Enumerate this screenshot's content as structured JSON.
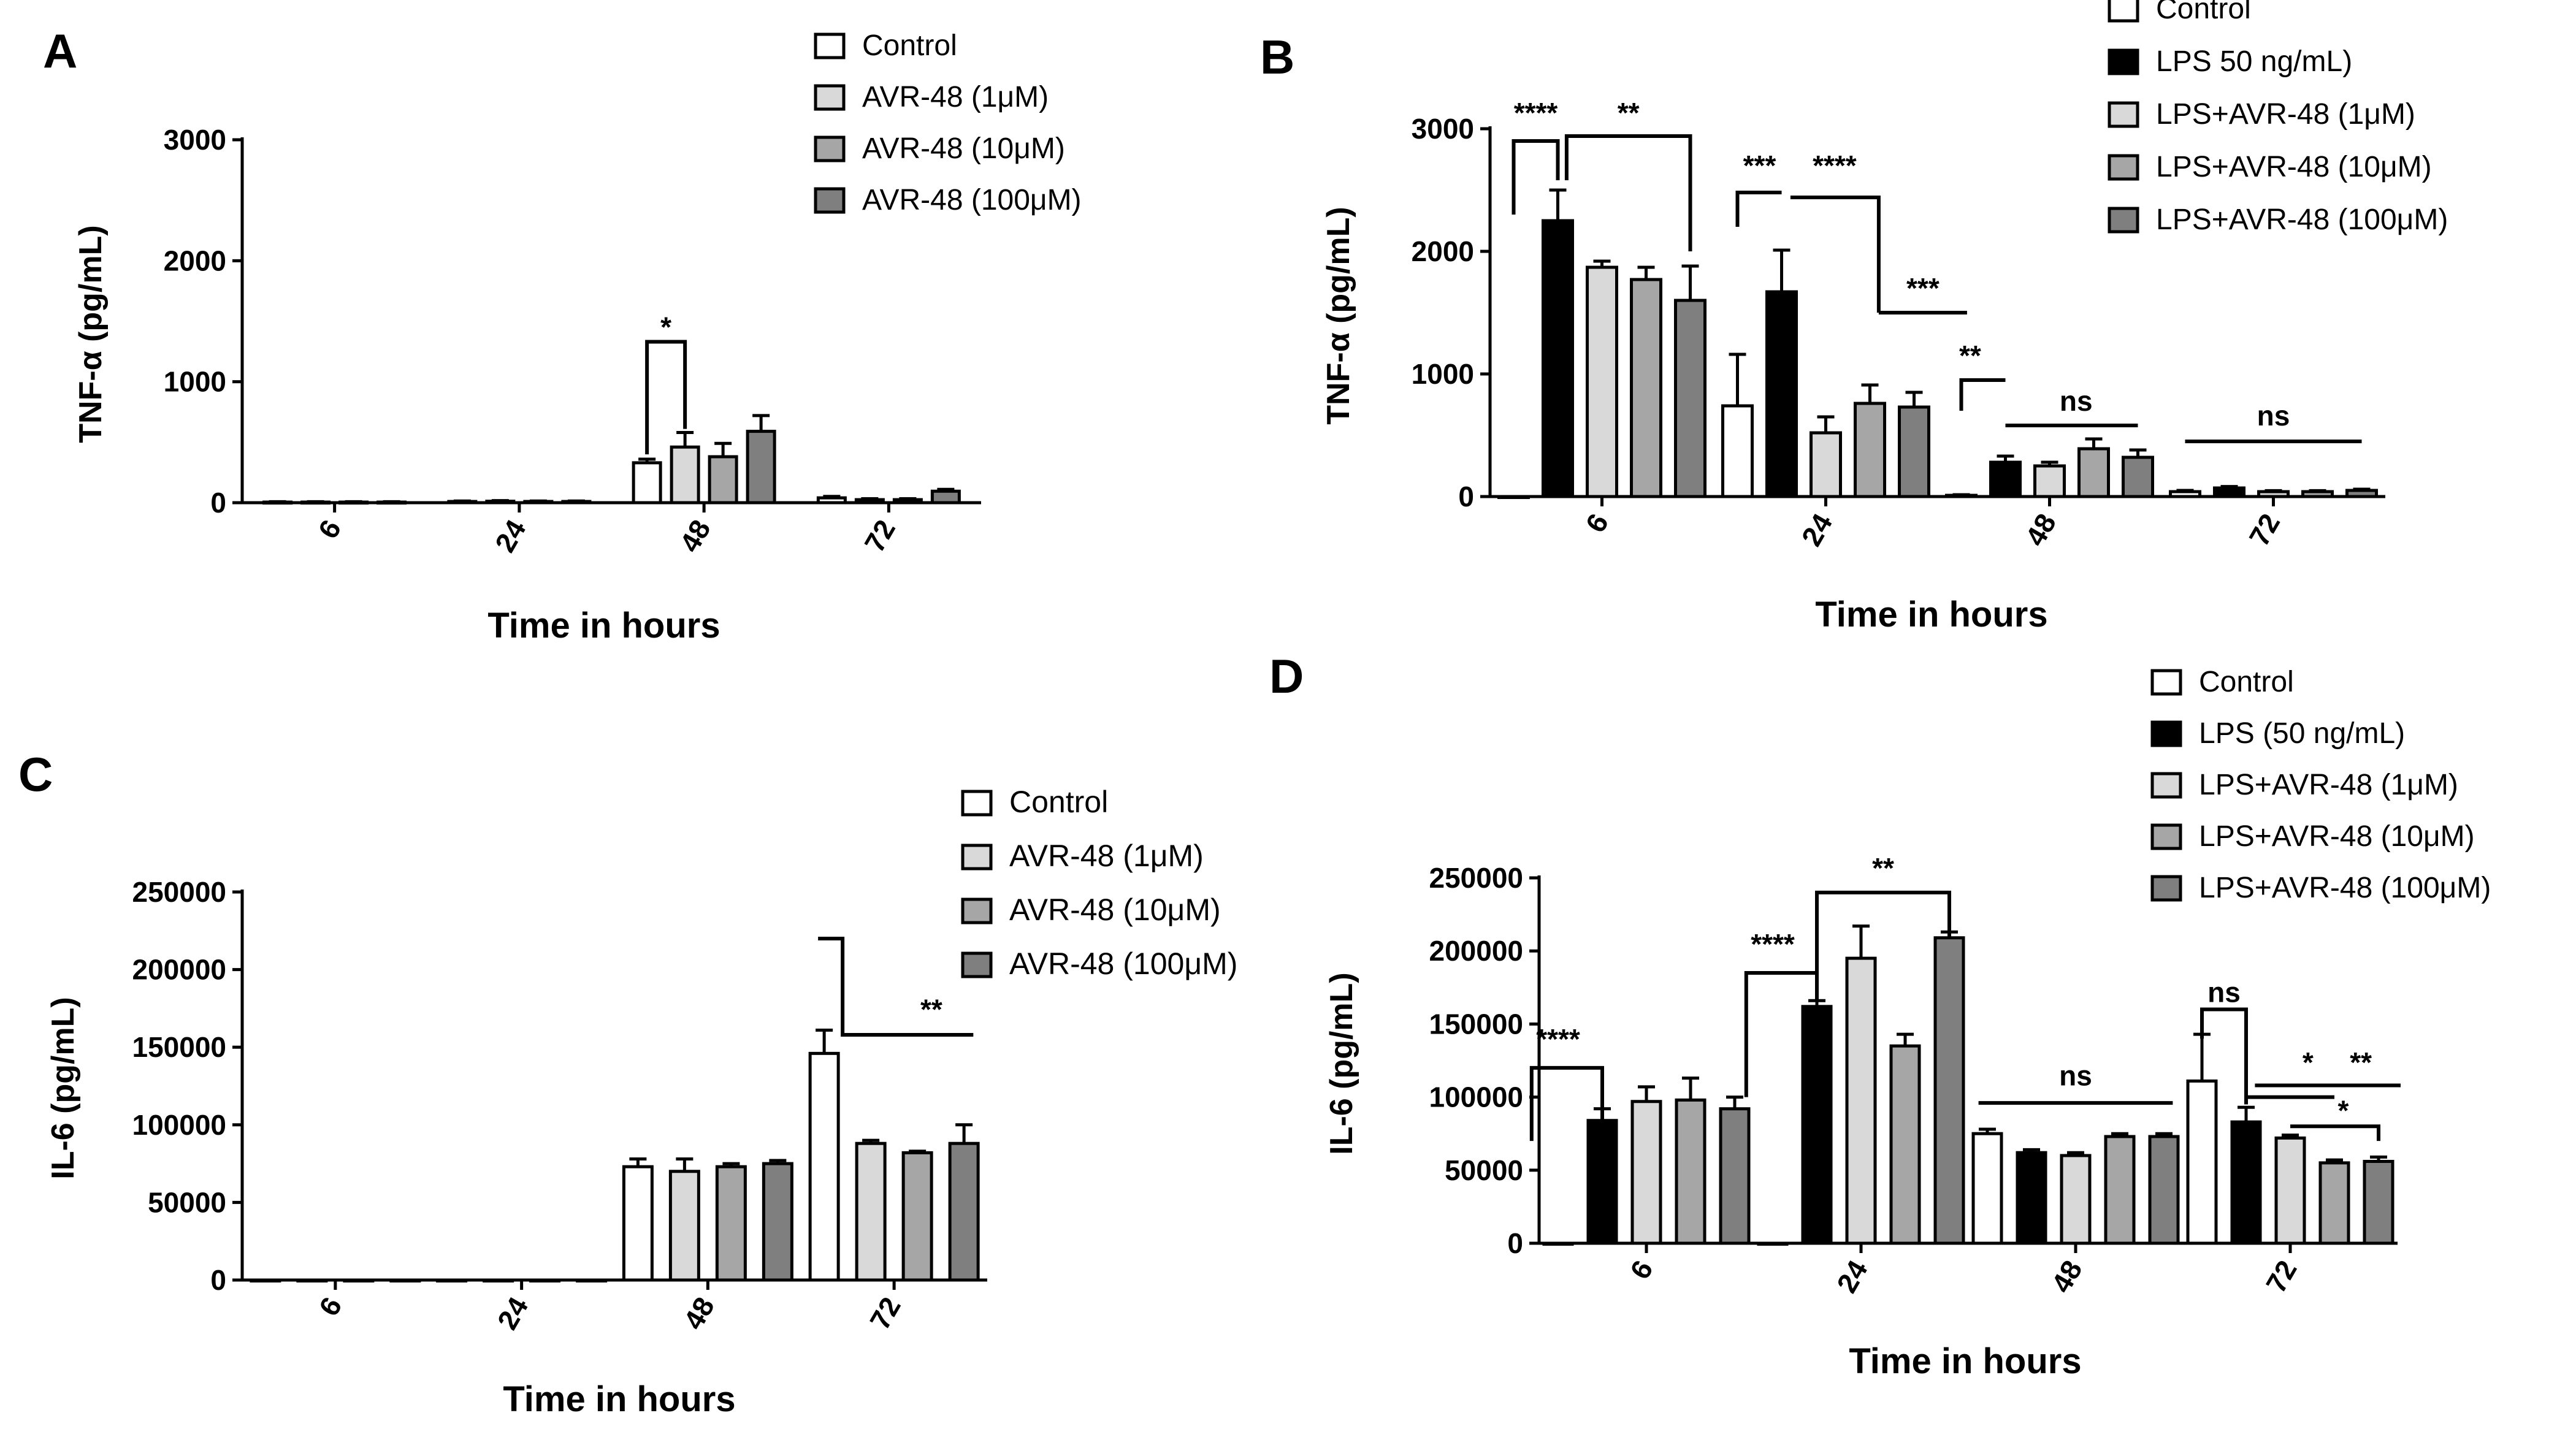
{
  "colors": {
    "Control": "#ffffff",
    "LPS": "#000000",
    "d1": "#d9d9d9",
    "d10": "#a6a6a6",
    "d100": "#7f7f7f",
    "axis": "#000000"
  },
  "chart_data": [
    {
      "panel_label": "A",
      "type": "bar",
      "title": "",
      "xlabel": "Time in hours",
      "ylabel": "TNF-α (pg/mL)",
      "categories": [
        "6",
        "24",
        "48",
        "72"
      ],
      "ylim": [
        0,
        3000
      ],
      "yticks": [
        "0",
        "1000",
        "2000",
        "3000"
      ],
      "ytick_values": [
        0,
        1000,
        2000,
        3000
      ],
      "legend_placement": "top-right",
      "series": [
        {
          "name": "Control",
          "color_key": "Control",
          "values": [
            5,
            10,
            330,
            40
          ],
          "errors": [
            3,
            4,
            30,
            12
          ]
        },
        {
          "name": "AVR-48 (1μM)",
          "color_key": "d1",
          "values": [
            5,
            12,
            460,
            25
          ],
          "errors": [
            3,
            5,
            120,
            8
          ]
        },
        {
          "name": "AVR-48 (10μM)",
          "color_key": "d10",
          "values": [
            5,
            10,
            380,
            25
          ],
          "errors": [
            3,
            4,
            110,
            8
          ]
        },
        {
          "name": "AVR-48 (100μM)",
          "color_key": "d100",
          "values": [
            5,
            10,
            590,
            95
          ],
          "errors": [
            3,
            4,
            130,
            15
          ]
        }
      ],
      "annotations": [
        {
          "text": "*",
          "bracket": {
            "cat": 2,
            "s1": 0,
            "s2": 1,
            "y1": 400,
            "y2": 610,
            "top": 1330
          },
          "text_pos": {
            "cat": 2,
            "s": 0.5,
            "y": 1370
          }
        }
      ]
    },
    {
      "panel_label": "B",
      "type": "bar",
      "title": "",
      "xlabel": "Time in hours",
      "ylabel": "TNF-α (pg/mL)",
      "categories": [
        "6",
        "24",
        "48",
        "72"
      ],
      "ylim": [
        0,
        3000
      ],
      "yticks": [
        "0",
        "1000",
        "2000",
        "3000"
      ],
      "ytick_values": [
        0,
        1000,
        2000,
        3000
      ],
      "legend_placement": "top-right",
      "series": [
        {
          "name": "Control",
          "color_key": "Control",
          "values": [
            0,
            740,
            10,
            40
          ],
          "errors": [
            0,
            420,
            5,
            10
          ]
        },
        {
          "name": "LPS 50 ng/mL)",
          "color_key": "LPS",
          "values": [
            2250,
            1670,
            280,
            70
          ],
          "errors": [
            250,
            340,
            50,
            12
          ]
        },
        {
          "name": "LPS+AVR-48 (1μM)",
          "color_key": "d1",
          "values": [
            1870,
            520,
            250,
            40
          ],
          "errors": [
            50,
            130,
            30,
            8
          ]
        },
        {
          "name": "LPS+AVR-48 (10μM)",
          "color_key": "d10",
          "values": [
            1770,
            760,
            390,
            40
          ],
          "errors": [
            100,
            150,
            80,
            8
          ]
        },
        {
          "name": "LPS+AVR-48 (100μM)",
          "color_key": "d100",
          "values": [
            1600,
            730,
            320,
            50
          ],
          "errors": [
            280,
            120,
            60,
            10
          ]
        }
      ],
      "annotations": [
        {
          "text": "****",
          "bracket": {
            "cat": 0,
            "s1": 0,
            "s2": 1,
            "y1": 2300,
            "y2": 2580,
            "top": 2900
          },
          "text_pos": {
            "cat": 0,
            "s": 0.5,
            "y": 3050
          }
        },
        {
          "text": "**",
          "bracket": {
            "cat": 0,
            "s1": 1.2,
            "s2": 4,
            "y1": 2580,
            "y2": 2000,
            "top": 2940
          },
          "text_pos": {
            "cat": 0,
            "s": 2.6,
            "y": 3050
          }
        },
        {
          "text": "***",
          "bracket": {
            "cat": 1,
            "s1": 0,
            "s2": 1,
            "y1": 2200,
            "y2": 2480,
            "top": 2480
          },
          "text_pos": {
            "cat": 1,
            "s": 0.5,
            "y": 2620
          }
        },
        {
          "text": "****",
          "bracket": {
            "cat": 1,
            "s1": 1.2,
            "s2": 3.2,
            "y1": 2440,
            "y2": 1500,
            "top": 2440
          },
          "text_pos": {
            "cat": 1,
            "s": 2.2,
            "y": 2620
          }
        },
        {
          "text": "***",
          "bracket": {
            "cat": 1,
            "s1": 3.2,
            "s2": 5.2,
            "y1": 1500,
            "y2": 1500,
            "top": 1500
          },
          "text_pos": {
            "cat": 1,
            "s": 4.2,
            "y": 1620
          }
        },
        {
          "text": "**",
          "bracket": {
            "cat": 2,
            "s1": 0,
            "s2": 1,
            "y1": 700,
            "y2": 950,
            "top": 950
          },
          "text_pos": {
            "cat": 2,
            "s": 0.2,
            "y": 1070
          }
        },
        {
          "text": "ns",
          "bracket": {
            "cat": 2,
            "s1": 1,
            "s2": 4,
            "y1": 580,
            "y2": 580,
            "top": 580
          },
          "text_pos": {
            "cat": 2,
            "s": 2.6,
            "y": 700
          }
        },
        {
          "text": "ns",
          "bracket": {
            "cat": 3,
            "s1": 0,
            "s2": 4,
            "y1": 450,
            "y2": 450,
            "top": 450
          },
          "text_pos": {
            "cat": 3,
            "s": 2,
            "y": 580
          }
        }
      ]
    },
    {
      "panel_label": "C",
      "type": "bar",
      "title": "",
      "xlabel": "Time in hours",
      "ylabel": "IL-6 (pg/mL)",
      "categories": [
        "6",
        "24",
        "48",
        "72"
      ],
      "ylim": [
        0,
        250000
      ],
      "yticks": [
        "0",
        "50000",
        "100000",
        "150000",
        "200000",
        "250000"
      ],
      "ytick_values": [
        0,
        50000,
        100000,
        150000,
        200000,
        250000
      ],
      "legend_placement": "top-right",
      "series": [
        {
          "name": "Control",
          "color_key": "Control",
          "values": [
            0,
            0,
            73000,
            146000
          ],
          "errors": [
            0,
            0,
            5000,
            15000
          ]
        },
        {
          "name": "AVR-48 (1μM)",
          "color_key": "d1",
          "values": [
            0,
            0,
            70000,
            88000
          ],
          "errors": [
            0,
            0,
            8000,
            2000
          ]
        },
        {
          "name": "AVR-48 (10μM)",
          "color_key": "d10",
          "values": [
            0,
            0,
            73000,
            82000
          ],
          "errors": [
            0,
            0,
            2000,
            1000
          ]
        },
        {
          "name": "AVR-48 (100μM)",
          "color_key": "d100",
          "values": [
            0,
            0,
            75000,
            88000
          ],
          "errors": [
            0,
            0,
            2000,
            12000
          ]
        }
      ],
      "annotations": [
        {
          "text": "**",
          "bracket": {
            "cat": 3,
            "s1": 0,
            "s2": 3.2,
            "y1": 195000,
            "y2": 158000,
            "top": 220000,
            "kink": 1
          },
          "text_pos": {
            "cat": 3,
            "s": 2.3,
            "y": 168000
          }
        }
      ]
    },
    {
      "panel_label": "D",
      "type": "bar",
      "title": "",
      "xlabel": "Time in hours",
      "ylabel": "IL-6 (pg/mL)",
      "categories": [
        "6",
        "24",
        "48",
        "72"
      ],
      "ylim": [
        0,
        250000
      ],
      "yticks": [
        "0",
        "50000",
        "100000",
        "150000",
        "200000",
        "250000"
      ],
      "ytick_values": [
        0,
        50000,
        100000,
        150000,
        200000,
        250000
      ],
      "legend_placement": "top-right",
      "series": [
        {
          "name": "Control",
          "color_key": "Control",
          "values": [
            0,
            0,
            75000,
            111000
          ],
          "errors": [
            0,
            0,
            3000,
            32000
          ]
        },
        {
          "name": "LPS (50 ng/mL)",
          "color_key": "LPS",
          "values": [
            84000,
            162000,
            62000,
            83000
          ],
          "errors": [
            8000,
            4000,
            2000,
            10000
          ]
        },
        {
          "name": "LPS+AVR-48 (1μM)",
          "color_key": "d1",
          "values": [
            97000,
            195000,
            60000,
            72000
          ],
          "errors": [
            10000,
            22000,
            2000,
            2000
          ]
        },
        {
          "name": "LPS+AVR-48 (10μM)",
          "color_key": "d10",
          "values": [
            98000,
            135000,
            73000,
            55000
          ],
          "errors": [
            15000,
            8000,
            2000,
            2000
          ]
        },
        {
          "name": "LPS+AVR-48 (100μM)",
          "color_key": "d100",
          "values": [
            92000,
            209000,
            73000,
            56000
          ],
          "errors": [
            8000,
            4000,
            2000,
            3000
          ]
        }
      ],
      "annotations": [
        {
          "text": "****",
          "bracket": {
            "cat": 0,
            "s1": -0.6,
            "s2": 1,
            "y1": 70000,
            "y2": 85000,
            "top": 120000
          },
          "text_pos": {
            "cat": 0,
            "s": 0,
            "y": 133000
          }
        },
        {
          "text": "****",
          "bracket": {
            "cat": 1,
            "s1": -0.6,
            "s2": 1,
            "y1": 100000,
            "y2": 165000,
            "top": 185000
          },
          "text_pos": {
            "cat": 1,
            "s": 0,
            "y": 198000
          }
        },
        {
          "text": "**",
          "bracket": {
            "cat": 1,
            "s1": 1,
            "s2": 4,
            "y1": 170000,
            "y2": 210000,
            "top": 240000
          },
          "text_pos": {
            "cat": 1,
            "s": 2.5,
            "y": 250000
          }
        },
        {
          "text": "ns",
          "bracket": {
            "cat": 2,
            "s1": -0.2,
            "s2": 4.2,
            "y1": 96000,
            "y2": 96000,
            "top": 96000
          },
          "text_pos": {
            "cat": 2,
            "s": 2,
            "y": 108000
          }
        },
        {
          "text": "ns",
          "bracket": {
            "cat": 3,
            "s1": 0,
            "s2": 1,
            "y1": 140000,
            "y2": 95000,
            "top": 160000
          },
          "text_pos": {
            "cat": 3,
            "s": 0.5,
            "y": 165000
          }
        },
        {
          "text": "*",
          "bracket": {
            "cat": 3,
            "s1": 1,
            "s2": 3,
            "y1": 100000,
            "y2": 100000,
            "top": 100000
          },
          "text_pos": {
            "cat": 3,
            "s": 2.4,
            "y": 117000
          }
        },
        {
          "text": "**",
          "bracket": {
            "cat": 3,
            "s1": 1.2,
            "s2": 4.5,
            "y1": 108000,
            "y2": 108000,
            "top": 108000
          },
          "text_pos": {
            "cat": 3,
            "s": 3.6,
            "y": 117000
          }
        },
        {
          "text": "*",
          "bracket": {
            "cat": 3,
            "s1": 2,
            "s2": 4,
            "y1": 80000,
            "y2": 70000,
            "top": 80000
          },
          "text_pos": {
            "cat": 3,
            "s": 3.2,
            "y": 84000
          }
        }
      ]
    }
  ]
}
